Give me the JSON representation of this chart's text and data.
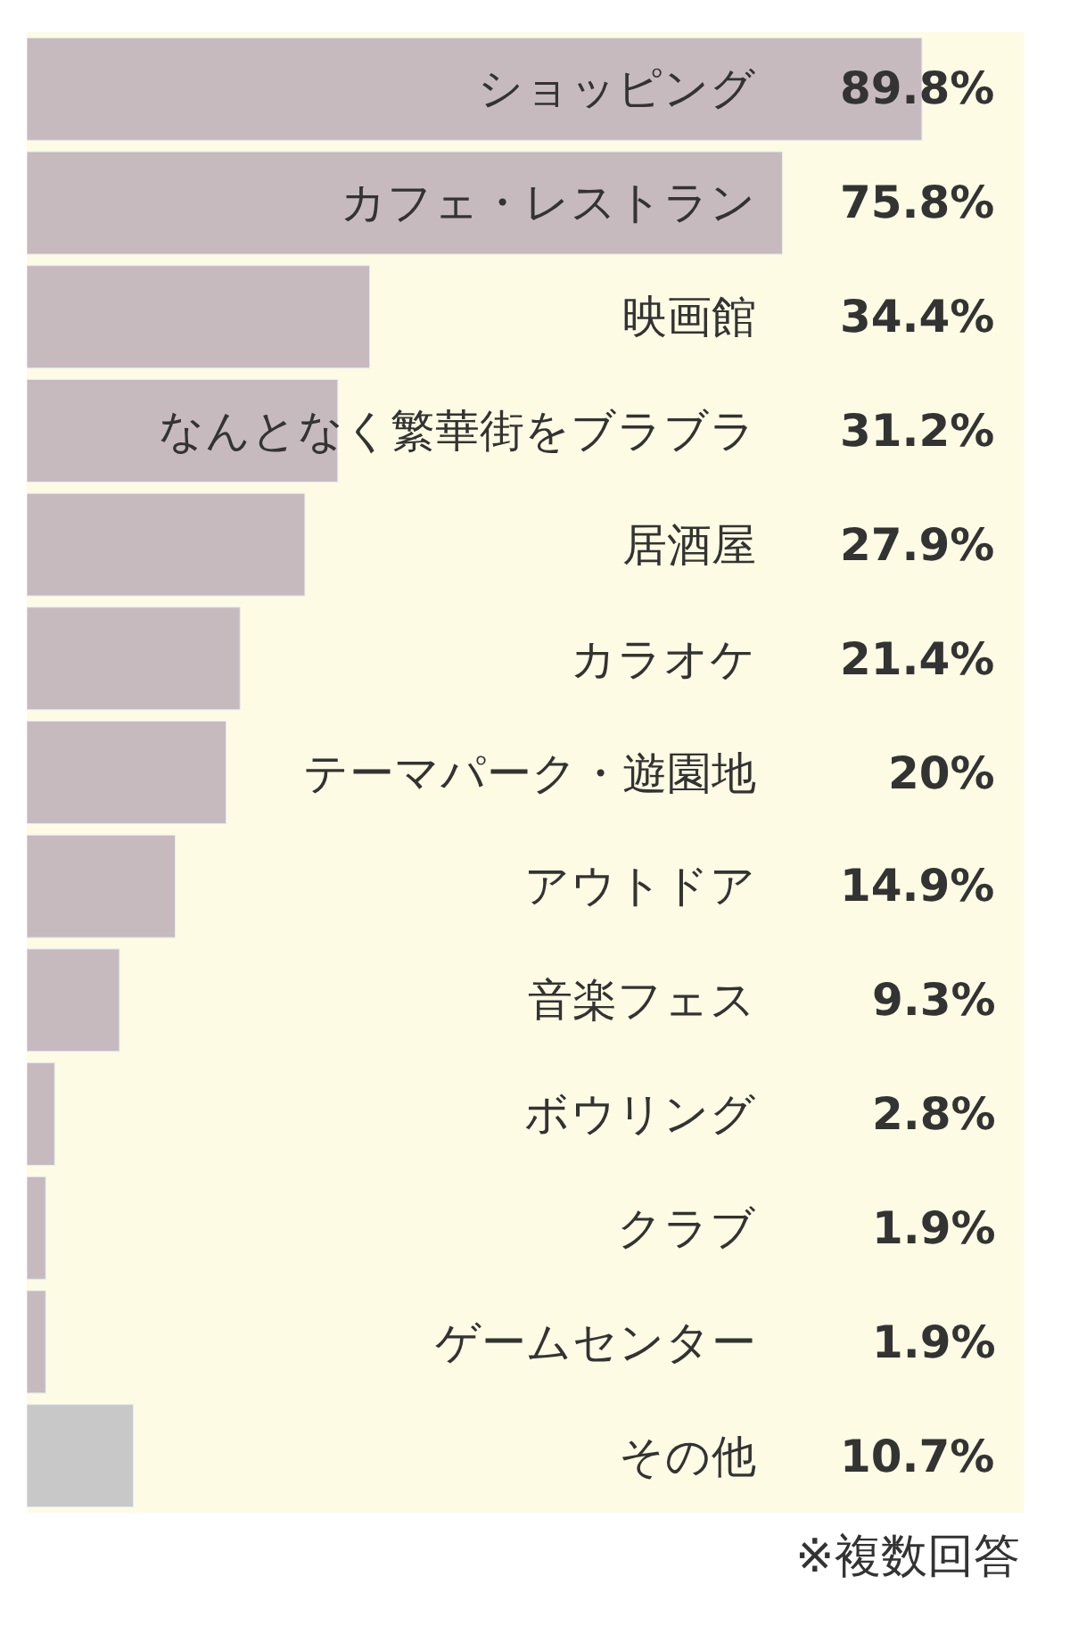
{
  "chart_data": {
    "type": "bar",
    "orientation": "horizontal",
    "categories": [
      "ショッピング",
      "カフェ・レストラン",
      "映画館",
      "なんとなく繁華街をブラブラ",
      "居酒屋",
      "カラオケ",
      "テーマパーク・遊園地",
      "アウトドア",
      "音楽フェス",
      "ボウリング",
      "クラブ",
      "ゲームセンター",
      "その他"
    ],
    "values": [
      89.8,
      75.8,
      34.4,
      31.2,
      27.9,
      21.4,
      20,
      14.9,
      9.3,
      2.8,
      1.9,
      1.9,
      10.7
    ],
    "colors": [
      "#c6babe",
      "#c6babe",
      "#c6babe",
      "#c6babe",
      "#c6babe",
      "#c6babe",
      "#c6babe",
      "#c6babe",
      "#c6babe",
      "#c6babe",
      "#c6babe",
      "#c6babe",
      "#c8c8c8"
    ],
    "value_labels": [
      "89.8%",
      "75.8%",
      "34.4%",
      "31.2%",
      "27.9%",
      "21.4%",
      "20%",
      "14.9%",
      "9.3%",
      "2.8%",
      "1.9%",
      "1.9%",
      "10.7%"
    ],
    "xlim": [
      0,
      100
    ],
    "annotations": [
      "※複数回答"
    ]
  }
}
